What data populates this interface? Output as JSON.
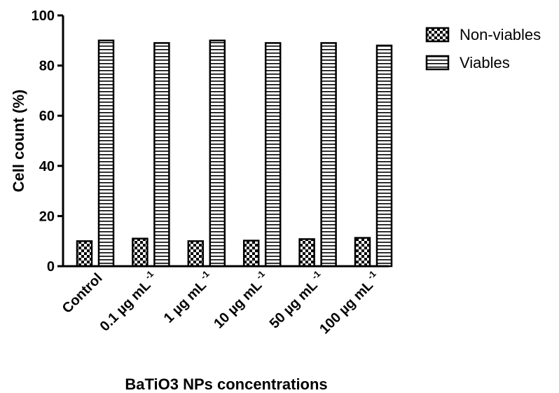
{
  "chart_data": {
    "type": "bar",
    "title": "",
    "xlabel": "BaTiO3 NPs concentrations",
    "ylabel": "Cell count (%)",
    "ylim": [
      0,
      100
    ],
    "yticks": [
      0,
      20,
      40,
      60,
      80,
      100
    ],
    "grid": false,
    "legend_placement": "top-right",
    "categories": [
      {
        "main": "Control",
        "sup": ""
      },
      {
        "main": "0.1 µg mL",
        "sup": "-1"
      },
      {
        "main": "1 µg mL",
        "sup": "-1"
      },
      {
        "main": "10 µg mL",
        "sup": "-1"
      },
      {
        "main": "50 µg mL",
        "sup": "-1"
      },
      {
        "main": "100 µg mL",
        "sup": "-1"
      }
    ],
    "series": [
      {
        "name": "Non-viables",
        "pattern": "checkerboard",
        "values": [
          10,
          11,
          10,
          10.2,
          10.8,
          11.3
        ]
      },
      {
        "name": "Viables",
        "pattern": "horizontal-stripes",
        "values": [
          90,
          89,
          90,
          89,
          89,
          88
        ]
      }
    ]
  }
}
